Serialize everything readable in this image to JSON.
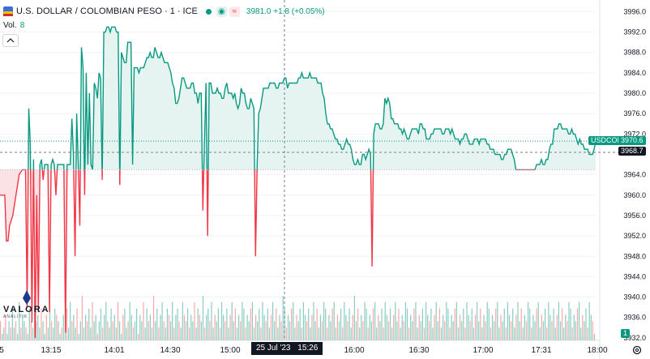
{
  "header": {
    "title": "U.S. DOLLAR / COLOMBIAN PESO",
    "interval": "1",
    "exchange": "ICE",
    "separator": "·",
    "quote": "3981.0 +1.8 (+0.05%)",
    "flag_icon": "usd-cop-flag-icon",
    "eye_glyph": "◉",
    "pill_glyph": "≈"
  },
  "volume_label": {
    "label": "Vol.",
    "value": "8"
  },
  "tags": {
    "symbol": "USDCOP",
    "last_price": "3970.6",
    "crosshair_price": "3968.7",
    "volume_value": "1",
    "date_badge_date": "25 Jul '23",
    "date_badge_time": "15:26"
  },
  "logo": {
    "word": "VALORA",
    "sub": "ANALITIK"
  },
  "colors": {
    "up": "#089981",
    "down": "#f23645",
    "up_fill": "#e6f4f1",
    "down_fill": "#fbe3e5",
    "grid": "#f0f3fa"
  },
  "chart_data": {
    "type": "area",
    "title": "U.S. DOLLAR / COLOMBIAN PESO · 1 · ICE",
    "baseline": 3965.0,
    "ylim": [
      3931.5,
      3997.5
    ],
    "y_ticks": [
      3996,
      3992,
      3988,
      3984,
      3980,
      3976,
      3972,
      3964,
      3960,
      3956,
      3952,
      3948,
      3944,
      3940,
      3936,
      3932
    ],
    "x_ticks": [
      "5",
      "13:15",
      "14:01",
      "14:30",
      "15:00",
      "16:00",
      "16:30",
      "17:00",
      "17:31",
      "18:00"
    ],
    "price_series": [
      3960,
      3960,
      3960,
      3960,
      3951,
      3951,
      3954,
      3955,
      3956,
      3958,
      3960,
      3962,
      3964,
      3964.5,
      3965,
      3965,
      3965,
      3938,
      3977,
      3970,
      3935,
      3967,
      3932,
      3960,
      3937,
      3966,
      3967,
      3963,
      3966,
      3966,
      3966,
      3937,
      3966,
      3967,
      3966,
      3960,
      3966,
      3966,
      3966,
      3966,
      3966,
      3933,
      3966,
      3966,
      3966,
      3975,
      3968,
      3948,
      3976,
      3966,
      3954,
      3989,
      3985,
      3960,
      3984,
      3966,
      3980,
      3966,
      3965,
      3982,
      3981,
      3979,
      3984,
      3983,
      3963,
      3992,
      3992,
      3993,
      3993,
      3992,
      3993,
      3993,
      3993,
      3992,
      3992,
      3962,
      3988,
      3987,
      3986,
      3986,
      3990,
      3990,
      3990,
      3966,
      3985,
      3985,
      3985,
      3984,
      3985,
      3985,
      3985,
      3986,
      3987,
      3987,
      3988,
      3987,
      3987,
      3989,
      3988,
      3987,
      3987,
      3988,
      3987,
      3986,
      3986,
      3986,
      3985,
      3984,
      3982,
      3981,
      3978,
      3978,
      3979,
      3981,
      3983,
      3983,
      3982,
      3981,
      3981,
      3981,
      3982,
      3982,
      3980,
      3980,
      3978,
      3980,
      3980,
      3957,
      3970,
      3982,
      3952,
      3982,
      3982,
      3980,
      3980,
      3980,
      3981,
      3980,
      3980,
      3979,
      3979,
      3981,
      3982,
      3980,
      3980,
      3980,
      3979,
      3980,
      3978,
      3977,
      3978,
      3981,
      3980,
      3980,
      3978,
      3977,
      3977,
      3979,
      3978,
      3977,
      3948,
      3966,
      3976,
      3977,
      3979,
      3981,
      3981,
      3981,
      3981,
      3982,
      3982,
      3982,
      3982,
      3981,
      3981,
      3982,
      3982,
      3982,
      3983,
      3983,
      3981,
      3982,
      3982,
      3982,
      3982,
      3982,
      3982,
      3983,
      3983,
      3984,
      3983,
      3983,
      3983,
      3983,
      3984,
      3983,
      3983,
      3983,
      3983,
      3982,
      3982,
      3982,
      3980,
      3979,
      3976,
      3974,
      3974,
      3973,
      3973,
      3972,
      3971,
      3971,
      3970,
      3970,
      3969,
      3969,
      3970,
      3971,
      3970,
      3970,
      3969,
      3967,
      3966,
      3966,
      3967,
      3966,
      3966,
      3968,
      3968,
      3967,
      3968,
      3969,
      3968,
      3946,
      3972,
      3974,
      3974,
      3974,
      3973,
      3973,
      3974,
      3979,
      3978,
      3979,
      3978,
      3975,
      3975,
      3974,
      3974,
      3974,
      3973,
      3973,
      3972,
      3973,
      3972,
      3971,
      3971,
      3972,
      3973,
      3973,
      3973,
      3973,
      3972,
      3974,
      3974,
      3973,
      3973,
      3971,
      3971,
      3971,
      3972,
      3972,
      3973,
      3973,
      3973,
      3973,
      3973,
      3972,
      3972,
      3973,
      3973,
      3973,
      3972,
      3973,
      3972,
      3971,
      3971,
      3971,
      3970,
      3971,
      3971,
      3972,
      3972,
      3971,
      3970,
      3970,
      3970,
      3971,
      3971,
      3971,
      3970,
      3971,
      3971,
      3971,
      3971,
      3970,
      3970,
      3969,
      3969,
      3969,
      3968,
      3968,
      3968,
      3968,
      3967,
      3967,
      3968,
      3968,
      3969,
      3969,
      3969,
      3968,
      3967,
      3965,
      3965,
      3965,
      3965,
      3965,
      3965,
      3965,
      3965,
      3965,
      3965,
      3965,
      3965,
      3965,
      3966,
      3966,
      3966,
      3967,
      3966,
      3966,
      3967,
      3967,
      3969,
      3970,
      3970,
      3973,
      3973,
      3973,
      3974,
      3974,
      3973,
      3973,
      3973,
      3973,
      3972,
      3972,
      3973,
      3972,
      3972,
      3971,
      3970,
      3971,
      3970,
      3970,
      3969,
      3969,
      3969,
      3968,
      3968,
      3968,
      3969,
      3970.6
    ],
    "volume_series": [
      3,
      1,
      2,
      4,
      1,
      3,
      2,
      5,
      2,
      3,
      1,
      6,
      2,
      4,
      3,
      2,
      1,
      5,
      3,
      2,
      7,
      3,
      4,
      2,
      5,
      3,
      1,
      4,
      2,
      6,
      3,
      2,
      5,
      4,
      3,
      1,
      2,
      4,
      3,
      5,
      2,
      6,
      3,
      4,
      2,
      5,
      1,
      3,
      7,
      2,
      4,
      3,
      5,
      2,
      6,
      3,
      4,
      1,
      3,
      5,
      2,
      4,
      6,
      3,
      2,
      5,
      3,
      4,
      2,
      6,
      3,
      1,
      4,
      5,
      2,
      3,
      6,
      4,
      2,
      3,
      5,
      1,
      4,
      3,
      6,
      2,
      5,
      3,
      4,
      2,
      7,
      3,
      5,
      2,
      4,
      6,
      3,
      2,
      5,
      4,
      3,
      6,
      2,
      4,
      5,
      3,
      2,
      6,
      4,
      3,
      5,
      2,
      4,
      3,
      6,
      2,
      5,
      4,
      3,
      7,
      2,
      4,
      5,
      3,
      6,
      2,
      4,
      3,
      5,
      2,
      6,
      4,
      3,
      5,
      2,
      4,
      6,
      3,
      5,
      2,
      4,
      3,
      6,
      5,
      2,
      4,
      3,
      5,
      6,
      2,
      4,
      3,
      5,
      2,
      6,
      4,
      3,
      5,
      2,
      4,
      6,
      3,
      5,
      2,
      4,
      3,
      7,
      5,
      2,
      4,
      3,
      5,
      6,
      2,
      4,
      3,
      5,
      2,
      6,
      4,
      3,
      5,
      2,
      4,
      6,
      3,
      5,
      2,
      4,
      3,
      6,
      5,
      2,
      4,
      3,
      5,
      6,
      2,
      4,
      3,
      5,
      2,
      6,
      4,
      3,
      5,
      2,
      4,
      7,
      3,
      5,
      2,
      4,
      3,
      6,
      5,
      2,
      4,
      3,
      5,
      6,
      2,
      4,
      3,
      5,
      2,
      6,
      4,
      3,
      5,
      2,
      4,
      6,
      3,
      5,
      2,
      4,
      3,
      6,
      5,
      2,
      4,
      3,
      5,
      6,
      2,
      4,
      3,
      5,
      2,
      6,
      4,
      3,
      5,
      2,
      4,
      6,
      3,
      5,
      2,
      4,
      3,
      6,
      5,
      2,
      4,
      3,
      5,
      6,
      2,
      4,
      3,
      5,
      2,
      6,
      4,
      3,
      5,
      2,
      4,
      6,
      3,
      5,
      2,
      4,
      3,
      6,
      5,
      2,
      4,
      3,
      5,
      6,
      2,
      4,
      3,
      5,
      2,
      6,
      4,
      3,
      5,
      2,
      4,
      6,
      3,
      5,
      2,
      4,
      3,
      6,
      5,
      2,
      4,
      3,
      5,
      6,
      2,
      4,
      3,
      5,
      2,
      6,
      4,
      3,
      5,
      2,
      4,
      6,
      3,
      5,
      2,
      4,
      3,
      6,
      5,
      2,
      4,
      3,
      5,
      6,
      2,
      4,
      3,
      5,
      2,
      6,
      4,
      3,
      1
    ]
  }
}
